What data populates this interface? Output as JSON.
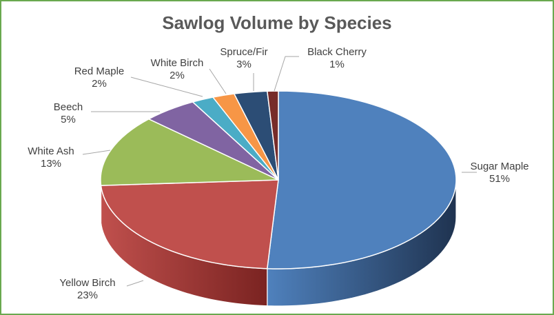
{
  "chart_data": {
    "type": "pie",
    "title": "Sawlog Volume by Species",
    "slices": [
      {
        "label": "Sugar Maple",
        "value": 51,
        "pct_label": "51%",
        "color": "#4f81bd",
        "side_color": "#1f3350"
      },
      {
        "label": "Yellow Birch",
        "value": 23,
        "pct_label": "23%",
        "color": "#c0504d",
        "side_color": "#7a2321"
      },
      {
        "label": "White Ash",
        "value": 13,
        "pct_label": "13%",
        "color": "#9bbb59",
        "side_color": "#5e7332"
      },
      {
        "label": "Beech",
        "value": 5,
        "pct_label": "5%",
        "color": "#8064a2",
        "side_color": "#4b3863"
      },
      {
        "label": "Red Maple",
        "value": 2,
        "pct_label": "2%",
        "color": "#4bacc6",
        "side_color": "#2a6878"
      },
      {
        "label": "White Birch",
        "value": 2,
        "pct_label": "2%",
        "color": "#f79646",
        "side_color": "#9c5520"
      },
      {
        "label": "Spruce/Fir",
        "value": 3,
        "pct_label": "3%",
        "color": "#2c4d75",
        "side_color": "#15263a"
      },
      {
        "label": "Black Cherry",
        "value": 1,
        "pct_label": "1%",
        "color": "#772c2a",
        "side_color": "#3f1514"
      }
    ],
    "legend": "none",
    "style": "3d-pie"
  }
}
